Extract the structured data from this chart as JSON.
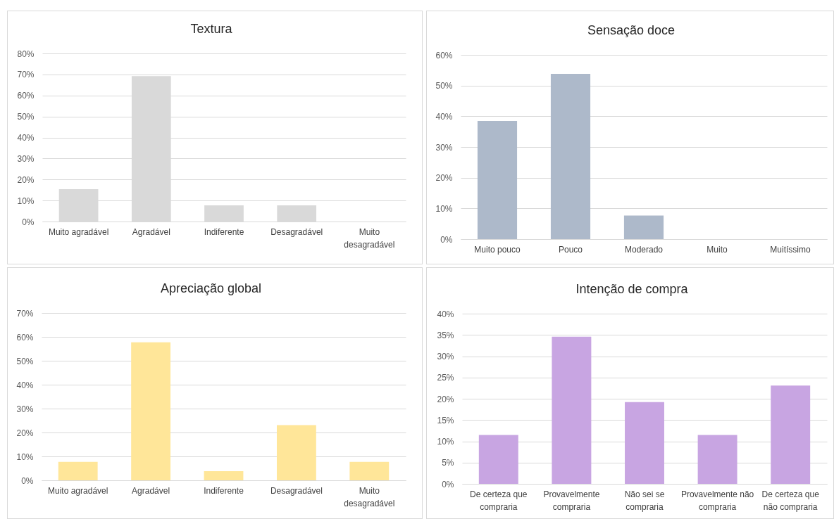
{
  "chart_data": [
    {
      "type": "bar",
      "title": "Textura",
      "categories": [
        "Muito agradável",
        "Agradável",
        "Indiferente",
        "Desagradável",
        "Muito desagradável"
      ],
      "values": [
        15.4,
        69.2,
        7.7,
        7.7,
        0
      ],
      "color": "#d9d9d9",
      "ylim": [
        0,
        80
      ],
      "yticks": [
        {
          "value": 0,
          "label": "0%"
        },
        {
          "value": 10,
          "label": "10%"
        },
        {
          "value": 20,
          "label": "20%"
        },
        {
          "value": 30,
          "label": "30%"
        },
        {
          "value": 40,
          "label": "40%"
        },
        {
          "value": 50,
          "label": "50%"
        },
        {
          "value": 60,
          "label": "60%"
        },
        {
          "value": 70,
          "label": "70%"
        },
        {
          "value": 80,
          "label": "80%"
        }
      ],
      "grid": "y"
    },
    {
      "type": "bar",
      "title": "Sensação doce",
      "categories": [
        "Muito pouco",
        "Pouco",
        "Moderado",
        "Muito",
        "Muitíssimo"
      ],
      "values": [
        38.5,
        53.8,
        7.7,
        0,
        0
      ],
      "color": "#adb9ca",
      "ylim": [
        0,
        60
      ],
      "yticks": [
        {
          "value": 0,
          "label": "0%"
        },
        {
          "value": 10,
          "label": "10%"
        },
        {
          "value": 20,
          "label": "20%"
        },
        {
          "value": 30,
          "label": "30%"
        },
        {
          "value": 40,
          "label": "40%"
        },
        {
          "value": 50,
          "label": "50%"
        },
        {
          "value": 60,
          "label": "60%"
        }
      ],
      "grid": "y"
    },
    {
      "type": "bar",
      "title": "Apreciação global",
      "categories": [
        "Muito agradável",
        "Agradável",
        "Indiferente",
        "Desagradável",
        "Muito desagradável"
      ],
      "values": [
        7.7,
        57.7,
        3.8,
        23.1,
        7.7
      ],
      "color": "#ffe699",
      "ylim": [
        0,
        70
      ],
      "yticks": [
        {
          "value": 0,
          "label": "0%"
        },
        {
          "value": 10,
          "label": "10%"
        },
        {
          "value": 20,
          "label": "20%"
        },
        {
          "value": 30,
          "label": "30%"
        },
        {
          "value": 40,
          "label": "40%"
        },
        {
          "value": 50,
          "label": "50%"
        },
        {
          "value": 60,
          "label": "60%"
        },
        {
          "value": 70,
          "label": "70%"
        }
      ],
      "grid": "y"
    },
    {
      "type": "bar",
      "title": "Intenção de compra",
      "categories": [
        "De certeza que compraria",
        "Provavelmente compraria",
        "Não sei se compraria",
        "Provavelmente não compraria",
        "De certeza que não compraria"
      ],
      "values": [
        11.5,
        34.6,
        19.2,
        11.5,
        23.1
      ],
      "color": "#c8a5e2",
      "ylim": [
        0,
        40
      ],
      "yticks": [
        {
          "value": 0,
          "label": "0%"
        },
        {
          "value": 5,
          "label": "5%"
        },
        {
          "value": 10,
          "label": "10%"
        },
        {
          "value": 15,
          "label": "15%"
        },
        {
          "value": 20,
          "label": "20%"
        },
        {
          "value": 25,
          "label": "25%"
        },
        {
          "value": 30,
          "label": "30%"
        },
        {
          "value": 35,
          "label": "35%"
        },
        {
          "value": 40,
          "label": "40%"
        }
      ],
      "grid": "y"
    }
  ]
}
